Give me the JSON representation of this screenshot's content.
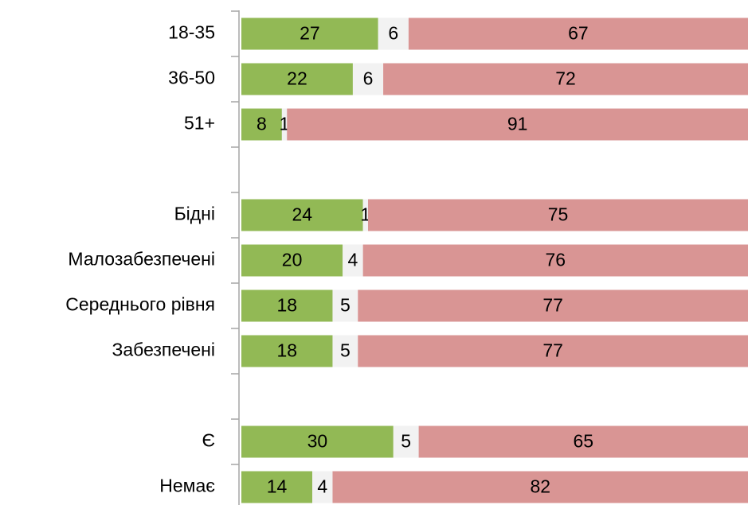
{
  "chart_data": {
    "type": "stacked-barh",
    "categories": [
      "18-35",
      "36-50",
      "51+",
      null,
      "Бідні",
      "Малозабезпечені",
      "Середнього рівня",
      "Забезпечені",
      null,
      "Є",
      "Немає"
    ],
    "series": [
      {
        "color": "#92b955",
        "values": [
          27,
          22,
          8,
          null,
          24,
          20,
          18,
          18,
          null,
          30,
          14
        ]
      },
      {
        "color": "#f2f2f2",
        "values": [
          6,
          6,
          1,
          null,
          1,
          4,
          5,
          5,
          null,
          5,
          4
        ]
      },
      {
        "color": "#d99594",
        "values": [
          67,
          72,
          91,
          null,
          75,
          76,
          77,
          77,
          null,
          65,
          82
        ]
      }
    ],
    "xlim": [
      0,
      100
    ]
  }
}
